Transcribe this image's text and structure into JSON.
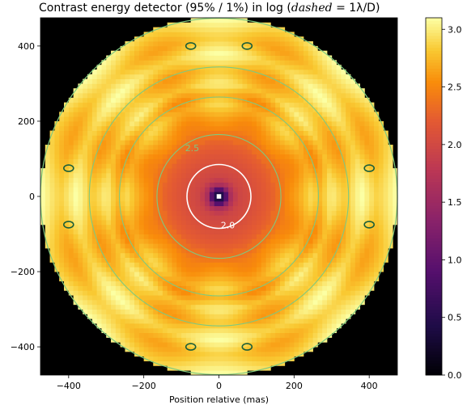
{
  "title": {
    "text": "Contrast energy detector (95% / 1%)  in log (",
    "italic": "dashed",
    "suffix": " = 1λ/D)"
  },
  "chart_data": {
    "type": "heatmap",
    "title": "Contrast energy detector (95% / 1%)  in log (dashed = 1λ/D)",
    "xlabel": "Position relative (mas)",
    "ylabel": "",
    "xlim": [
      -475,
      475
    ],
    "ylim": [
      -475,
      475
    ],
    "xticks": [
      -400,
      -200,
      0,
      200,
      400
    ],
    "yticks": [
      -400,
      -200,
      0,
      200,
      400
    ],
    "aperture_radius_mas": 475,
    "background_outside_aperture": "#000000",
    "colormap": "inferno",
    "colorbar": {
      "min": 0.0,
      "max": 3.1,
      "ticks": [
        0.0,
        0.5,
        1.0,
        1.5,
        2.0,
        2.5,
        3.0
      ],
      "tick_labels": [
        "0.0",
        "0.5",
        "1.0",
        "1.5",
        "2.0",
        "2.5",
        "3.0"
      ]
    },
    "radial_profile": [
      {
        "r": 0,
        "v": 0.2
      },
      {
        "r": 15,
        "v": 0.6
      },
      {
        "r": 30,
        "v": 1.6
      },
      {
        "r": 50,
        "v": 1.95
      },
      {
        "r": 80,
        "v": 2.05
      },
      {
        "r": 110,
        "v": 2.15
      },
      {
        "r": 140,
        "v": 2.25
      },
      {
        "r": 165,
        "v": 2.35
      },
      {
        "r": 185,
        "v": 2.55
      },
      {
        "r": 215,
        "v": 2.65
      },
      {
        "r": 245,
        "v": 2.75
      },
      {
        "r": 270,
        "v": 2.6
      },
      {
        "r": 300,
        "v": 2.95
      },
      {
        "r": 340,
        "v": 2.7
      },
      {
        "r": 380,
        "v": 2.95
      },
      {
        "r": 420,
        "v": 2.8
      },
      {
        "r": 475,
        "v": 2.95
      }
    ],
    "contours": [
      {
        "level": 2.0,
        "label": "2.0",
        "color": "#ffffff"
      },
      {
        "level": 2.5,
        "label": "2.5",
        "color": "#7fc97f"
      },
      {
        "level": 3.0,
        "label": "",
        "color": "#1a5e3a"
      }
    ],
    "dashed_circle": {
      "radius_mas": 85,
      "label": "1λ/D"
    }
  }
}
